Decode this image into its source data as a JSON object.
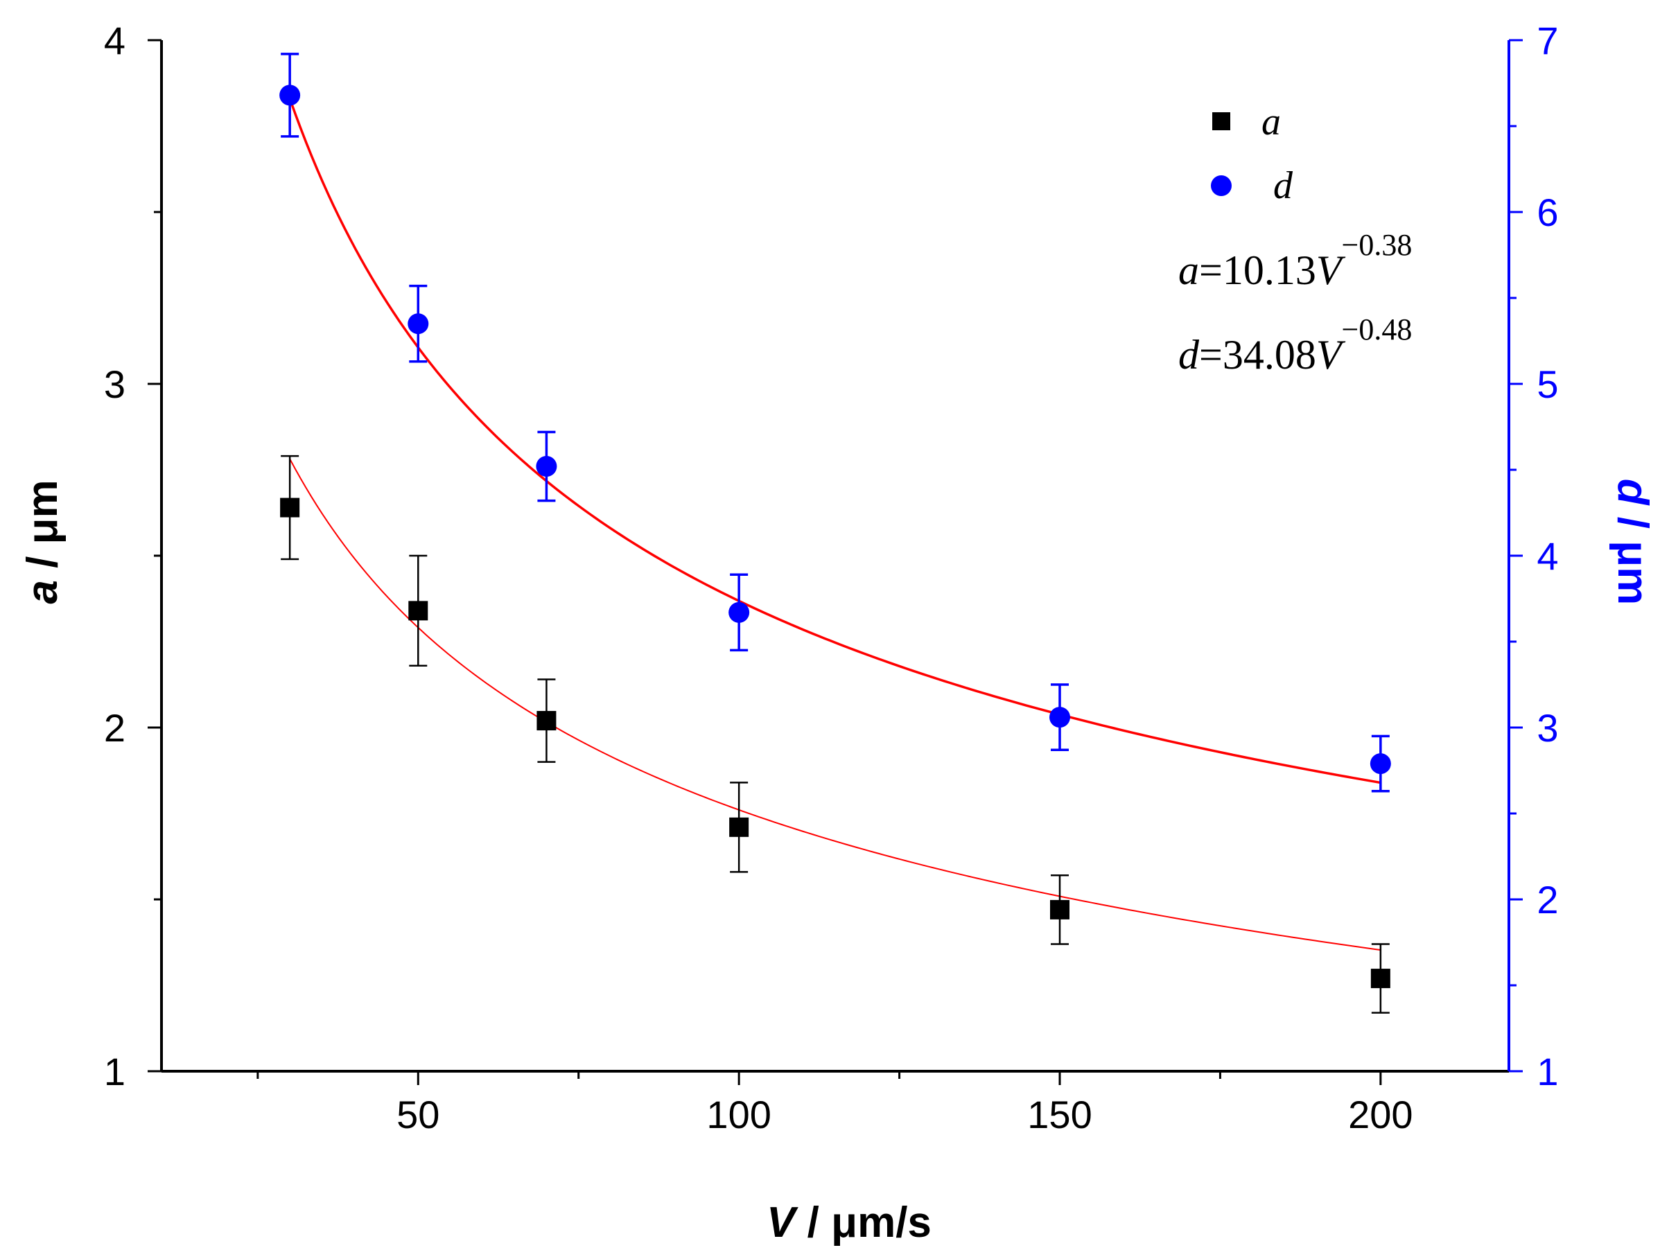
{
  "chart_data": {
    "type": "scatter",
    "xlabel": {
      "var": "V",
      "unit": " / μm/s"
    },
    "ylabel_left": {
      "var": "a",
      "unit": " / μm"
    },
    "ylabel_right": {
      "var": "d",
      "unit": " / μm"
    },
    "xlim": [
      10,
      220
    ],
    "ylim_left": [
      1,
      4
    ],
    "ylim_right": [
      1,
      7
    ],
    "x_ticks": [
      50,
      100,
      150,
      200
    ],
    "x_minor_ticks": [
      25,
      75,
      125,
      175
    ],
    "y_left_ticks": [
      1,
      2,
      3,
      4
    ],
    "y_left_minor_ticks": [
      1.5,
      2.5,
      3.5
    ],
    "y_right_ticks": [
      1,
      2,
      3,
      4,
      5,
      6,
      7
    ],
    "y_right_minor_ticks": [
      1.5,
      2.5,
      3.5,
      4.5,
      5.5,
      6.5
    ],
    "grid": false,
    "legend_position": "top-right",
    "colors": {
      "a_marker": "#000000",
      "d_marker": "#0000ff",
      "fit": "#ff0000",
      "right_axis": "#0000ff"
    },
    "series": [
      {
        "name": "a",
        "axis": "left",
        "marker": "square",
        "x": [
          30,
          50,
          70,
          100,
          150,
          200
        ],
        "y": [
          2.64,
          2.34,
          2.02,
          1.71,
          1.47,
          1.27
        ],
        "err": [
          0.15,
          0.16,
          0.12,
          0.13,
          0.1,
          0.1
        ]
      },
      {
        "name": "d",
        "axis": "right",
        "marker": "circle",
        "x": [
          30,
          50,
          70,
          100,
          150,
          200
        ],
        "y": [
          6.68,
          5.35,
          4.52,
          3.67,
          3.06,
          2.79
        ],
        "err": [
          0.24,
          0.22,
          0.2,
          0.22,
          0.19,
          0.16
        ]
      }
    ],
    "fits": [
      {
        "name": "a",
        "axis": "left",
        "coef": 10.13,
        "exp": -0.38,
        "x_range": [
          30,
          200
        ]
      },
      {
        "name": "d",
        "axis": "right",
        "coef": 34.08,
        "exp": -0.48,
        "x_range": [
          30,
          200
        ]
      }
    ],
    "equations": [
      {
        "var": "a",
        "body": "=10.13",
        "base": "V",
        "exponent": "−0.38"
      },
      {
        "var": "d",
        "body": "=34.08",
        "base": "V",
        "exponent": "−0.48"
      }
    ]
  }
}
